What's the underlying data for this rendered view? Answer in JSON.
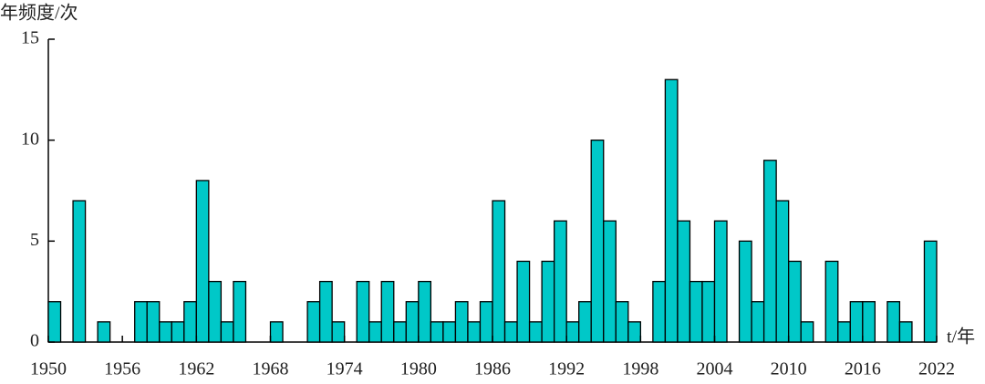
{
  "chart_data": {
    "type": "histogram",
    "y_label": "年频度/次",
    "x_label": "t/年",
    "bins": [
      1950,
      1951,
      1952,
      1953,
      1954,
      1955,
      1956,
      1957,
      1958,
      1959,
      1960,
      1961,
      1962,
      1963,
      1964,
      1965,
      1966,
      1967,
      1968,
      1969,
      1970,
      1971,
      1972,
      1973,
      1974,
      1975,
      1976,
      1977,
      1978,
      1979,
      1980,
      1981,
      1982,
      1983,
      1984,
      1985,
      1986,
      1987,
      1988,
      1989,
      1990,
      1991,
      1992,
      1993,
      1994,
      1995,
      1996,
      1997,
      1998,
      1999,
      2000,
      2001,
      2002,
      2003,
      2004,
      2005,
      2006,
      2007,
      2008,
      2009,
      2010,
      2011,
      2012,
      2013,
      2014,
      2015,
      2016,
      2017,
      2018,
      2019,
      2020,
      2021,
      2022
    ],
    "values": [
      2,
      0,
      7,
      0,
      1,
      0,
      0,
      2,
      2,
      1,
      1,
      2,
      8,
      3,
      1,
      3,
      0,
      0,
      1,
      0,
      0,
      2,
      3,
      1,
      0,
      3,
      1,
      3,
      1,
      2,
      3,
      1,
      1,
      2,
      1,
      2,
      7,
      1,
      4,
      1,
      4,
      6,
      1,
      2,
      10,
      6,
      2,
      1,
      0,
      3,
      13,
      6,
      3,
      3,
      6,
      0,
      5,
      2,
      9,
      7,
      4,
      1,
      0,
      4,
      1,
      2,
      2,
      0,
      2,
      1,
      0,
      5
    ],
    "color": "#00c8c8",
    "xlim": [
      1950,
      2022
    ],
    "xticks": [
      1950,
      1956,
      1962,
      1968,
      1974,
      1980,
      1986,
      1992,
      1998,
      2004,
      2010,
      2016,
      2022
    ],
    "ylim": [
      0,
      15
    ],
    "yticks": [
      0,
      5,
      10,
      15
    ]
  }
}
